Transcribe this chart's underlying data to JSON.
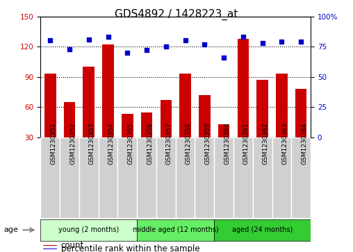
{
  "title": "GDS4892 / 1428223_at",
  "samples": [
    "GSM1230351",
    "GSM1230352",
    "GSM1230353",
    "GSM1230354",
    "GSM1230355",
    "GSM1230356",
    "GSM1230357",
    "GSM1230358",
    "GSM1230359",
    "GSM1230360",
    "GSM1230361",
    "GSM1230362",
    "GSM1230363",
    "GSM1230364"
  ],
  "counts": [
    93,
    65,
    100,
    122,
    53,
    55,
    67,
    93,
    72,
    43,
    128,
    87,
    93,
    78
  ],
  "percentiles": [
    80,
    73,
    81,
    83,
    70,
    72,
    75,
    80,
    77,
    66,
    83,
    78,
    79,
    79
  ],
  "bar_color": "#cc0000",
  "dot_color": "#0000cc",
  "ylim_left": [
    30,
    150
  ],
  "ylim_right": [
    0,
    100
  ],
  "yticks_left": [
    30,
    60,
    90,
    120,
    150
  ],
  "yticks_right": [
    0,
    25,
    50,
    75,
    100
  ],
  "groups": [
    {
      "label": "young (2 months)",
      "start": 0,
      "end": 5,
      "color": "#ccffcc"
    },
    {
      "label": "middle aged (12 months)",
      "start": 5,
      "end": 9,
      "color": "#66ee66"
    },
    {
      "label": "aged (24 months)",
      "start": 9,
      "end": 14,
      "color": "#33cc33"
    }
  ],
  "age_label": "age",
  "legend_count": "count",
  "legend_percentile": "percentile rank within the sample",
  "background_color": "#ffffff",
  "plot_bg": "#ffffff",
  "title_fontsize": 11,
  "tick_fontsize": 7.5,
  "label_fontsize": 8.5,
  "xticklabel_fontsize": 6.5
}
